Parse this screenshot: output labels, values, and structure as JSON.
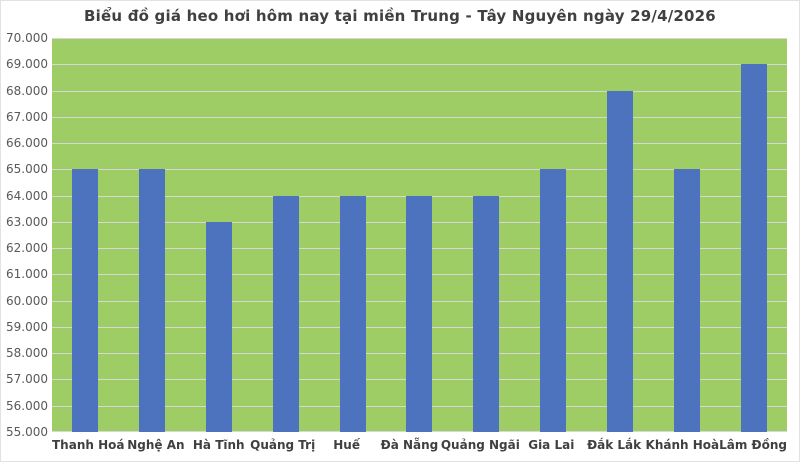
{
  "chart_data": {
    "type": "bar",
    "title": "Biểu đồ giá heo hơi hôm nay tại miền Trung - Tây Nguyên ngày 29/4/2026",
    "categories": [
      "Thanh Hoá",
      "Nghệ An",
      "Hà Tĩnh",
      "Quảng Trị",
      "Huế",
      "Đà Nẵng",
      "Quảng Ngãi",
      "Gia Lai",
      "Đắk Lắk",
      "Khánh Hoà",
      "Lâm Đồng"
    ],
    "values": [
      65000,
      65000,
      63000,
      64000,
      64000,
      64000,
      64000,
      65000,
      68000,
      65000,
      69000
    ],
    "xlabel": "",
    "ylabel": "",
    "ylim": [
      55000,
      70000
    ],
    "ytick_step": 1000,
    "ytick_labels": [
      "70.000",
      "69.000",
      "68.000",
      "67.000",
      "66.000",
      "65.000",
      "64.000",
      "63.000",
      "62.000",
      "61.000",
      "60.000",
      "59.000",
      "58.000",
      "57.000",
      "56.000",
      "55.000"
    ],
    "grid": true,
    "legend": "none",
    "colors": {
      "bar": "#4d73be",
      "plot_background": "#9ecd66",
      "gridline": "#d6d9d3",
      "title_text": "#404040",
      "x_tick_text": "#404040",
      "y_tick_text": "#595959",
      "page_background": "#ffffff"
    }
  }
}
